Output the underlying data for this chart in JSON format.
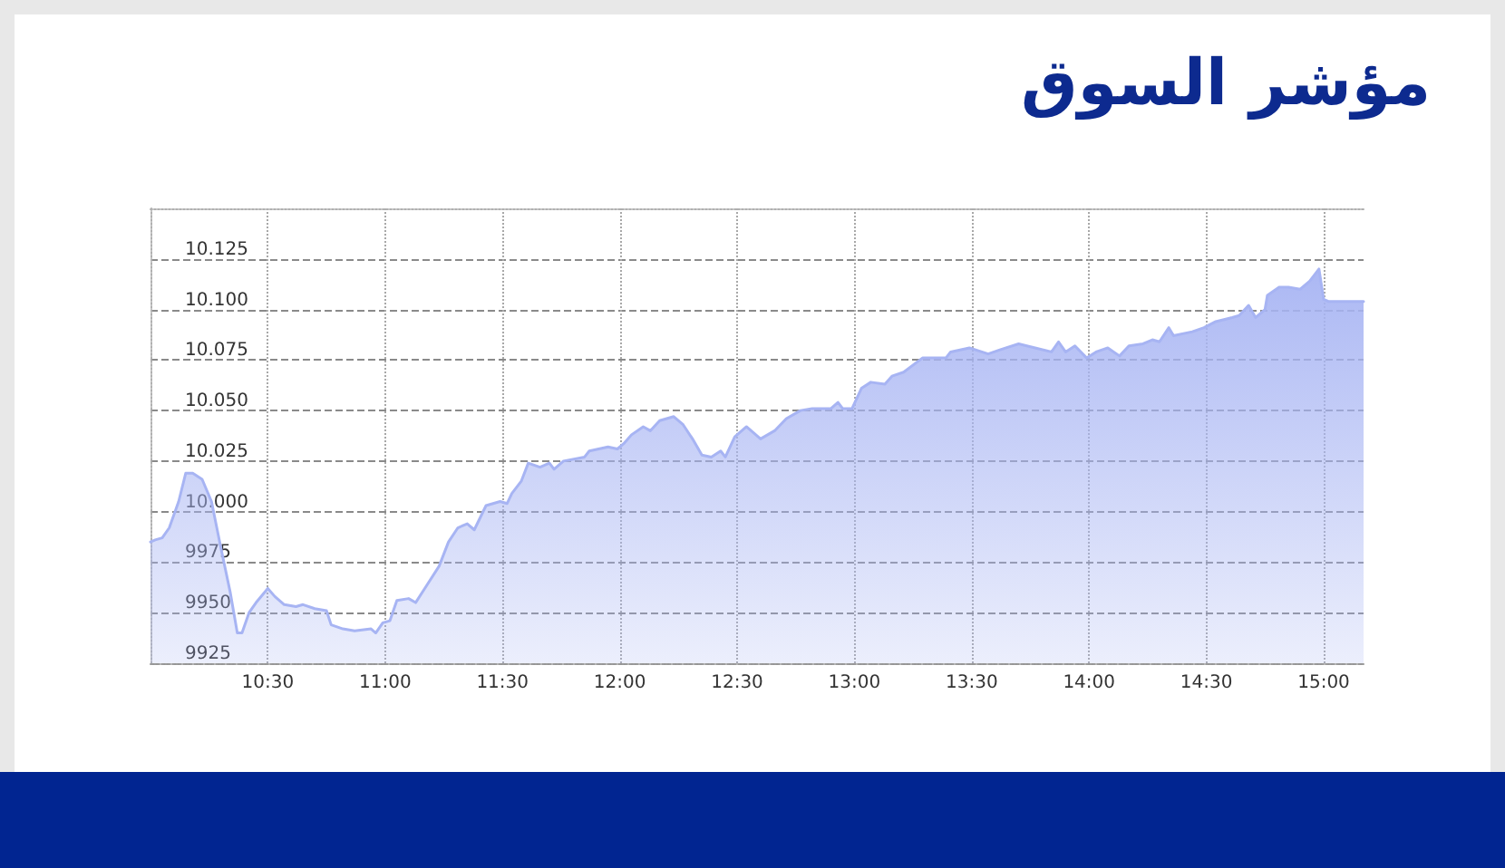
{
  "chart_data": {
    "type": "area",
    "title": "مؤشر السوق",
    "x": [
      10,
      10.02,
      10.05,
      10.08,
      10.12,
      10.15,
      10.18,
      10.22,
      10.26,
      10.3,
      10.34,
      10.37,
      10.39,
      10.42,
      10.45,
      10.5,
      10.53,
      10.57,
      10.62,
      10.65,
      10.7,
      10.75,
      10.77,
      10.82,
      10.87,
      10.94,
      10.96,
      10.99,
      11.02,
      11.05,
      11.1,
      11.13,
      11.18,
      11.23,
      11.27,
      11.31,
      11.35,
      11.38,
      11.43,
      11.46,
      11.49,
      11.52,
      11.54,
      11.58,
      11.61,
      11.66,
      11.7,
      11.72,
      11.76,
      11.85,
      11.87,
      11.95,
      11.99,
      12.02,
      12.05,
      12.1,
      12.13,
      12.17,
      12.23,
      12.27,
      12.31,
      12.35,
      12.39,
      12.43,
      12.45,
      12.49,
      12.54,
      12.6,
      12.66,
      12.71,
      12.77,
      12.82,
      12.9,
      12.93,
      12.95,
      12.99,
      13.03,
      13.07,
      13.13,
      13.16,
      13.21,
      13.29,
      13.39,
      13.41,
      13.49,
      13.57,
      13.62,
      13.7,
      13.77,
      13.84,
      13.87,
      13.9,
      13.94,
      13.99,
      14.03,
      14.08,
      14.13,
      14.17,
      14.23,
      14.27,
      14.3,
      14.34,
      14.36,
      14.44,
      14.49,
      14.54,
      14.61,
      14.64,
      14.68,
      14.71,
      14.75,
      14.76,
      14.81,
      14.85,
      14.9,
      14.94,
      14.98,
      15,
      15.02,
      15.17
    ],
    "values": [
      9985,
      9986,
      9987,
      9992,
      10005,
      10019,
      10019,
      10016,
      10005,
      9982,
      9960,
      9940,
      9940,
      9950,
      9955,
      9962,
      9958,
      9954,
      9953,
      9954,
      9952,
      9951,
      9944,
      9942,
      9941,
      9942,
      9940,
      9945,
      9946,
      9956,
      9957,
      9955,
      9964,
      9973,
      9985,
      9992,
      9994,
      9991,
      10003,
      10004,
      10005,
      10004,
      10009,
      10015,
      10024,
      10022,
      10024,
      10021,
      10025,
      10027,
      10030,
      10032,
      10031,
      10034,
      10038,
      10042,
      10040,
      10045,
      10047,
      10043,
      10036,
      10028,
      10027,
      10030,
      10027,
      10037,
      10042,
      10036,
      10040,
      10046,
      10050,
      10051,
      10051,
      10054,
      10051,
      10051,
      10061,
      10064,
      10063,
      10067,
      10069,
      10076,
      10076,
      10079,
      10081,
      10078,
      10080,
      10083,
      10081,
      10079,
      10084,
      10079,
      10082,
      10076,
      10079,
      10081,
      10077,
      10082,
      10083,
      10085,
      10084,
      10091,
      10087,
      10089,
      10091,
      10094,
      10096,
      10097,
      10102,
      10096,
      10100,
      10107,
      10111,
      10111,
      10110,
      10114,
      10120,
      10105,
      10104,
      10104
    ],
    "color": "#a7b4f3",
    "xlim": [
      10,
      15.17
    ],
    "xticks": [
      {
        "value": 10.5,
        "label": "10:30"
      },
      {
        "value": 11,
        "label": "11:00"
      },
      {
        "value": 11.5,
        "label": "11:30"
      },
      {
        "value": 12,
        "label": "12:00"
      },
      {
        "value": 12.5,
        "label": "12:30"
      },
      {
        "value": 13,
        "label": "13:00"
      },
      {
        "value": 13.5,
        "label": "13:30"
      },
      {
        "value": 14,
        "label": "14:00"
      },
      {
        "value": 14.5,
        "label": "14:30"
      },
      {
        "value": 15,
        "label": "15:00"
      }
    ],
    "ylim": [
      9925,
      10150
    ],
    "yticks": [
      9925,
      9950,
      9975,
      {
        "value": 10000,
        "label": "10.000"
      },
      {
        "value": 10025,
        "label": "10.025"
      },
      {
        "value": 10050,
        "label": "10.050"
      },
      {
        "value": 10075,
        "label": "10.075"
      },
      {
        "value": 10100,
        "label": "10.100"
      },
      {
        "value": 10125,
        "label": "10.125"
      }
    ],
    "grid": true,
    "marker": "none"
  }
}
